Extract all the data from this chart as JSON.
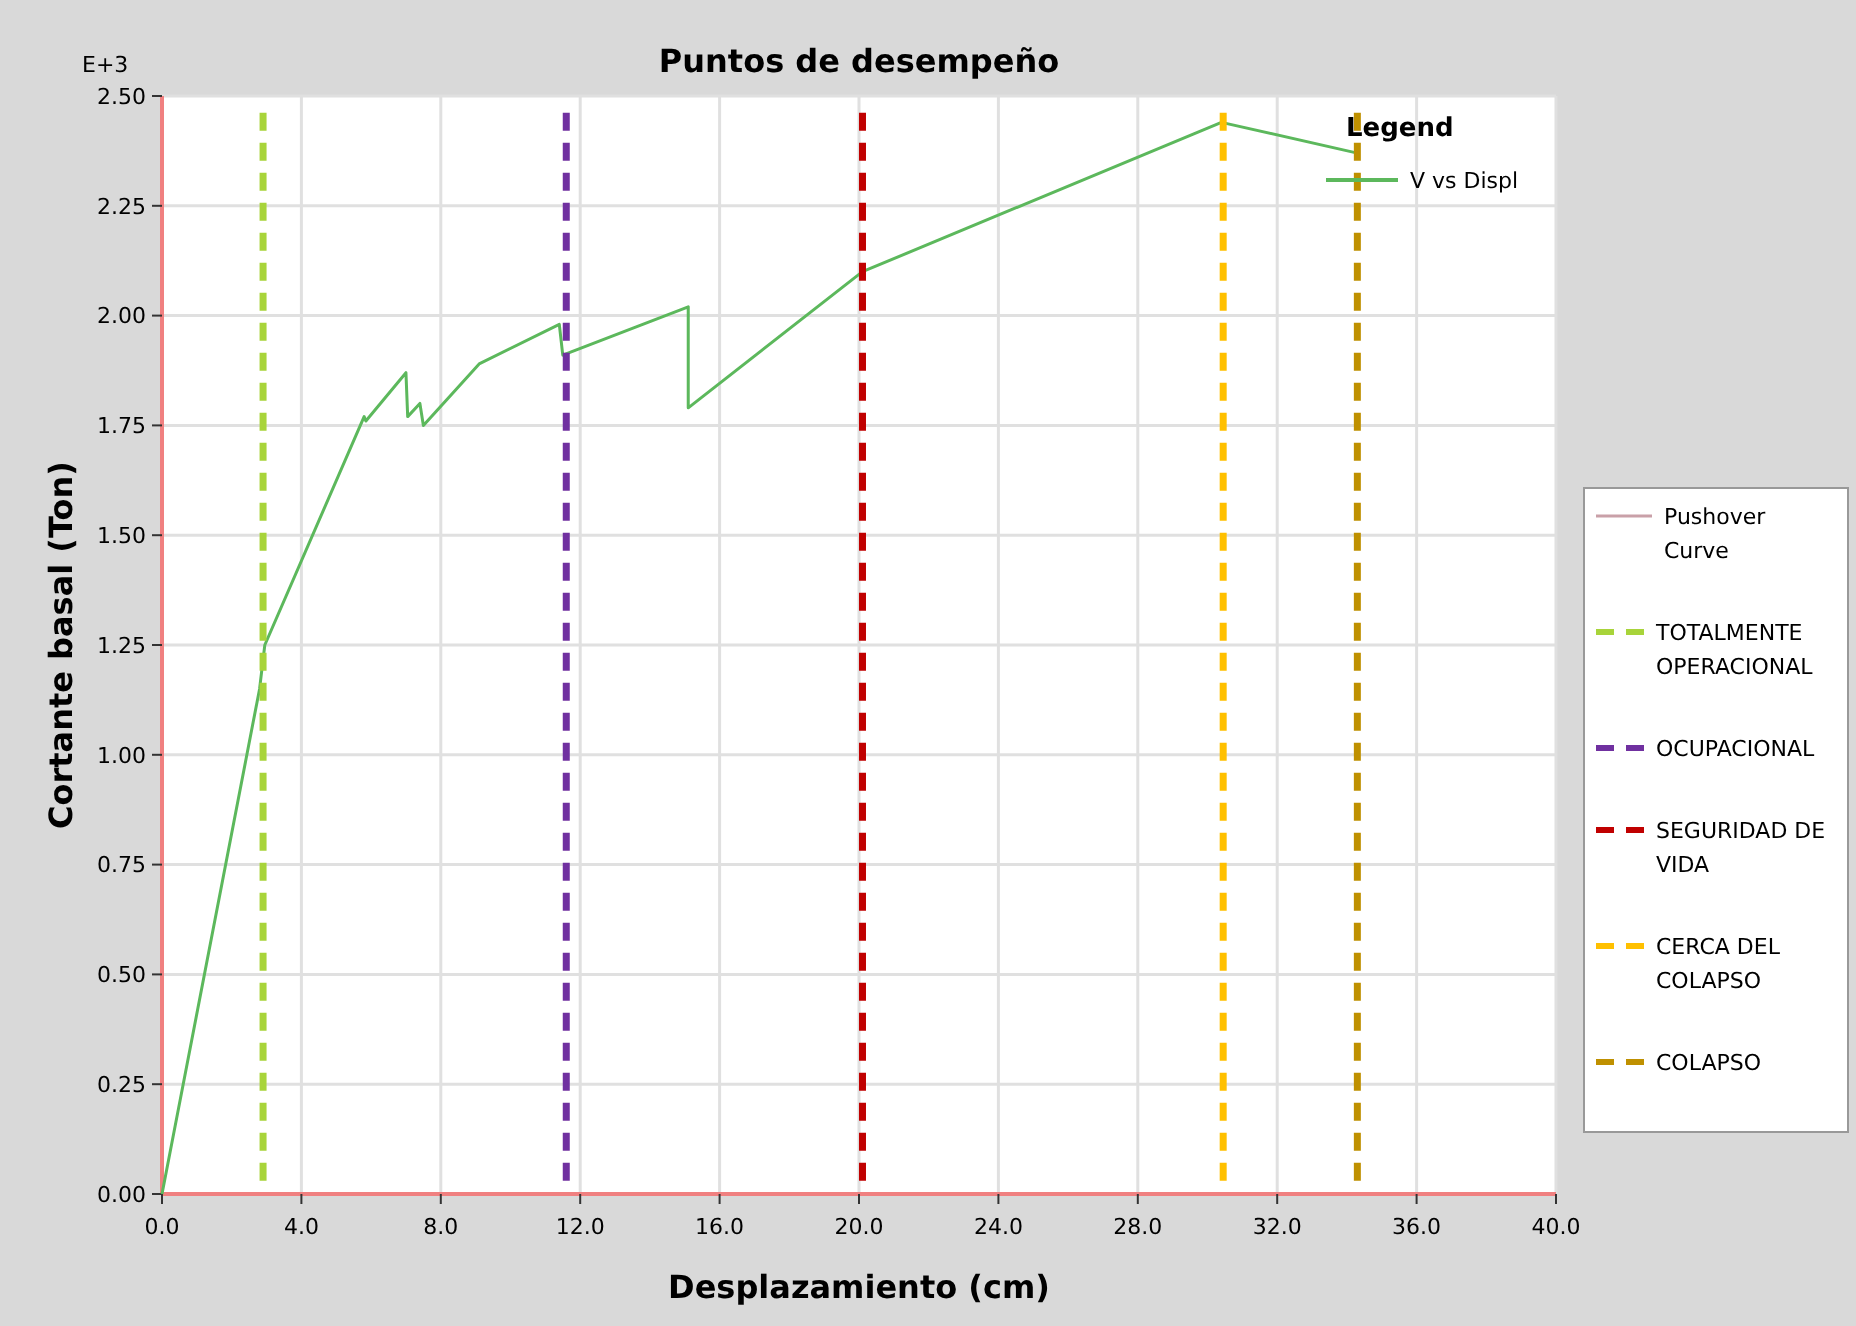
{
  "chart_data": {
    "type": "line",
    "title": "Puntos de desempeño",
    "xlabel": "Desplazamiento (cm)",
    "ylabel": "Cortante basal (Ton)",
    "legend_title": "Legend",
    "legend": "top right",
    "grid": true,
    "line_style": "solid",
    "marker": "none",
    "annotations": [
      "E+3",
      "Pushover Curve"
    ],
    "xlim": [
      0,
      40
    ],
    "xticks": [
      {
        "value": 0,
        "label": "0.0"
      },
      {
        "value": 4,
        "label": "4.0"
      },
      {
        "value": 8,
        "label": "8.0"
      },
      {
        "value": 12,
        "label": "12.0"
      },
      {
        "value": 16,
        "label": "16.0"
      },
      {
        "value": 20,
        "label": "20.0"
      },
      {
        "value": 24,
        "label": "24.0"
      },
      {
        "value": 28,
        "label": "28.0"
      },
      {
        "value": 32,
        "label": "32.0"
      },
      {
        "value": 36,
        "label": "36.0"
      },
      {
        "value": 40,
        "label": "40.0"
      }
    ],
    "ylim": [
      0,
      2.5
    ],
    "yticks": [
      {
        "value": 0,
        "label": "0.00"
      },
      {
        "value": 0.25,
        "label": "0.25"
      },
      {
        "value": 0.5,
        "label": "0.50"
      },
      {
        "value": 0.75,
        "label": "0.75"
      },
      {
        "value": 1,
        "label": "1.00"
      },
      {
        "value": 1.25,
        "label": "1.25"
      },
      {
        "value": 1.5,
        "label": "1.50"
      },
      {
        "value": 1.75,
        "label": "1.75"
      },
      {
        "value": 2,
        "label": "2.00"
      },
      {
        "value": 2.25,
        "label": "2.25"
      },
      {
        "value": 2.5,
        "label": "2.50"
      }
    ],
    "series": [
      {
        "name": "V vs Displ",
        "color": "#5cb85c",
        "x": [
          0,
          2.8,
          2.95,
          5.8,
          5.85,
          7.0,
          7.05,
          7.4,
          7.5,
          9.1,
          11.4,
          11.5,
          15.1,
          15.1,
          20.1,
          30.4,
          34.3
        ],
        "values": [
          0,
          1.15,
          1.25,
          1.77,
          1.76,
          1.87,
          1.77,
          1.8,
          1.75,
          1.89,
          1.98,
          1.91,
          2.02,
          1.79,
          2.1,
          2.44,
          2.37
        ]
      },
      {
        "name": "TOTALMENTE OPERACIONAL",
        "color": "#a8d43a",
        "line_style": "dashed",
        "x": [
          2.9,
          2.9
        ],
        "values": [
          0.03,
          2.47
        ]
      },
      {
        "name": "OCUPACIONAL",
        "color": "#7030a0",
        "line_style": "dashed",
        "x": [
          11.6,
          11.6
        ],
        "values": [
          0.03,
          2.47
        ]
      },
      {
        "name": "SEGURIDAD DE VIDA",
        "color": "#c00000",
        "line_style": "dashed",
        "x": [
          20.1,
          20.1
        ],
        "values": [
          0.03,
          2.47
        ]
      },
      {
        "name": "CERCA DEL COLAPSO",
        "color": "#ffc000",
        "line_style": "dashed",
        "x": [
          30.45,
          30.45
        ],
        "values": [
          0.03,
          2.47
        ]
      },
      {
        "name": "COLAPSO",
        "color": "#bf9000",
        "line_style": "dashed",
        "x": [
          34.3,
          34.3
        ],
        "values": [
          0.03,
          2.47
        ]
      }
    ]
  }
}
